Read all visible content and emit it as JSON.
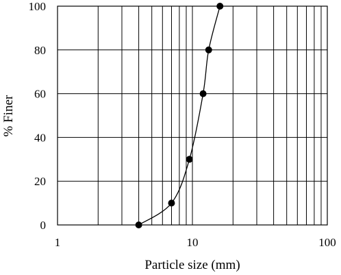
{
  "chart_data": {
    "type": "scatter",
    "xlabel": "Particle size (mm)",
    "ylabel": "% Finer",
    "x_scale": "log",
    "xlim": [
      1,
      100
    ],
    "ylim": [
      0,
      100
    ],
    "x_ticks": [
      "1",
      "10",
      "100"
    ],
    "y_ticks": [
      "0",
      "20",
      "40",
      "60",
      "80",
      "100"
    ],
    "grid": true,
    "marker_color": "#000000",
    "line_color": "#000000",
    "series": [
      {
        "points": [
          {
            "x": 4.0,
            "y": 0
          },
          {
            "x": 7.0,
            "y": 10
          },
          {
            "x": 9.5,
            "y": 30
          },
          {
            "x": 12.0,
            "y": 60
          },
          {
            "x": 13.2,
            "y": 80
          },
          {
            "x": 16.0,
            "y": 100
          }
        ]
      }
    ]
  }
}
